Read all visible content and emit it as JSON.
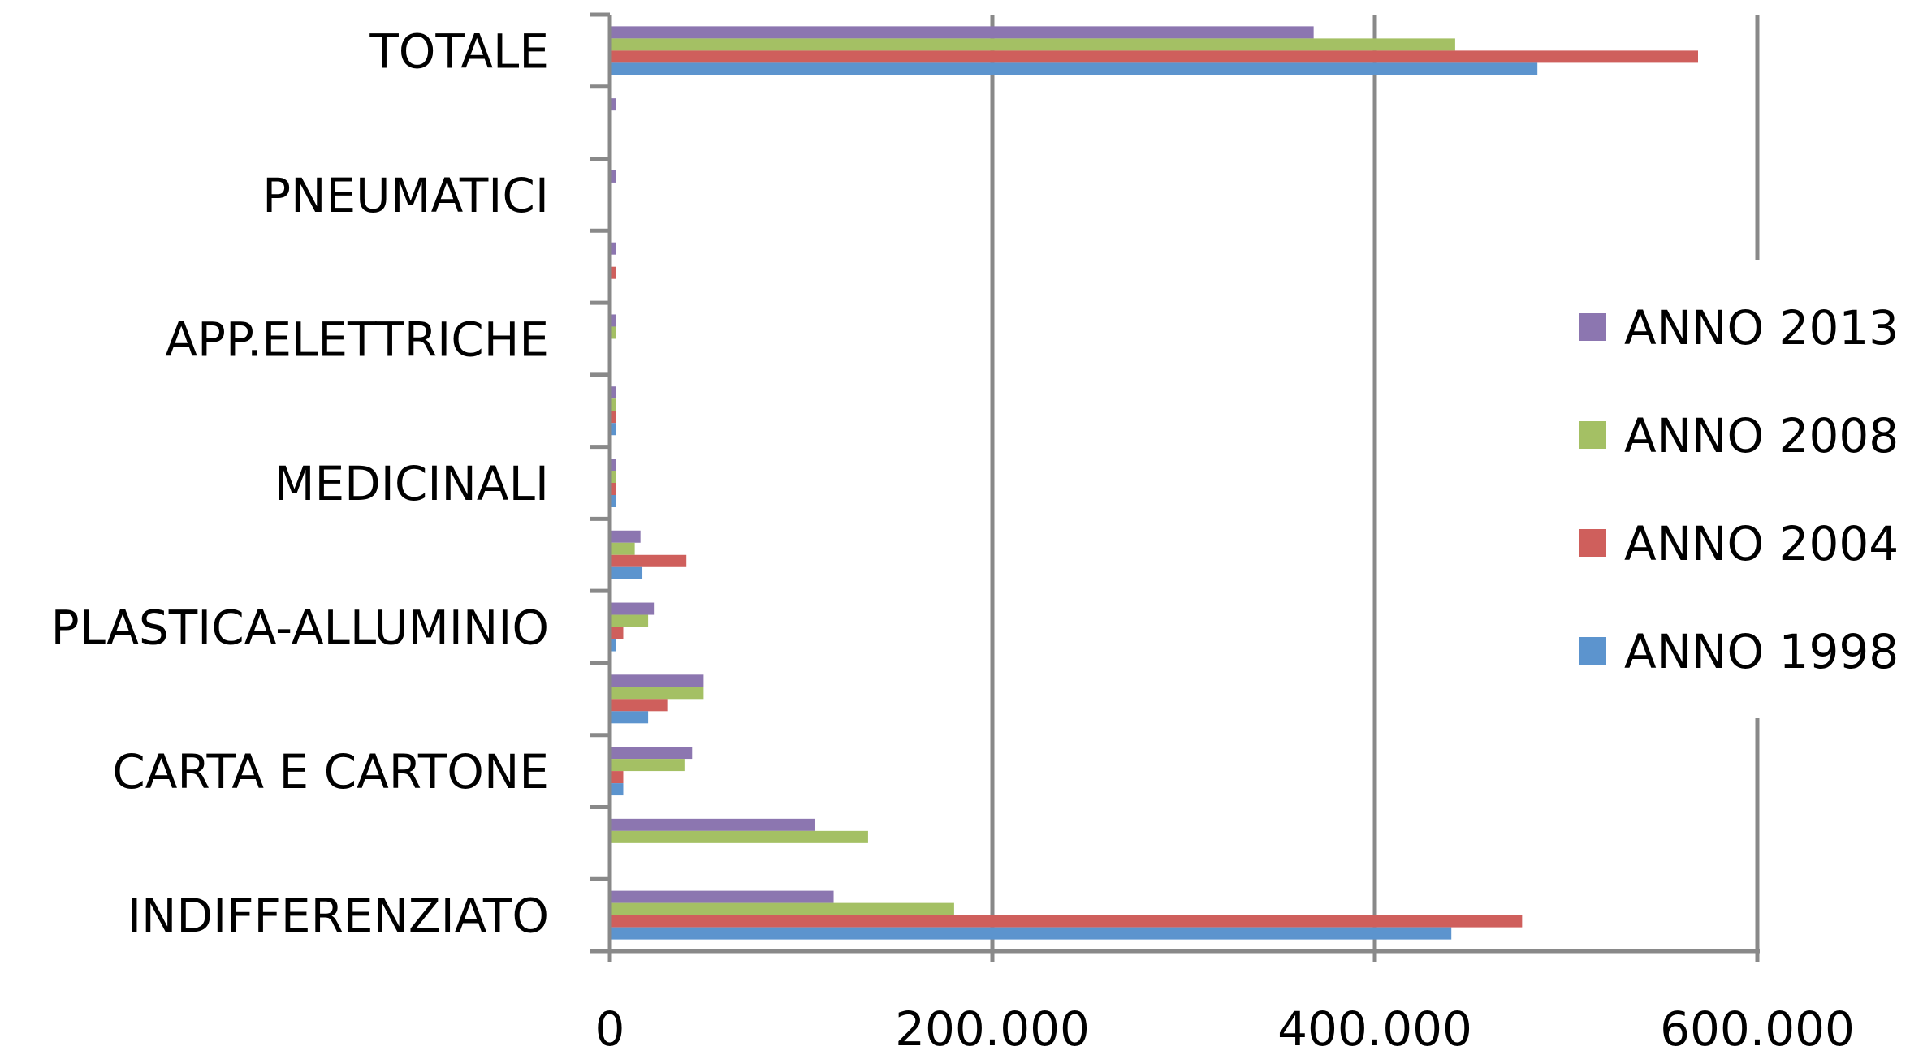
{
  "chart_data": {
    "type": "bar",
    "orientation": "horizontal",
    "categories": [
      "INDIFFERENZIATO",
      "",
      "CARTA E CARTONE",
      "",
      "PLASTICA-ALLUMINIO",
      "",
      "MEDICINALI",
      "",
      "APP.ELETTRICHE",
      "",
      "PNEUMATICI",
      "",
      "TOTALE"
    ],
    "series": [
      {
        "name": "ANNO 2013",
        "color": "#8C76B0",
        "values": [
          117000,
          107000,
          43000,
          49000,
          23000,
          16000,
          3000,
          3000,
          3000,
          3000,
          3000,
          3000,
          368000
        ]
      },
      {
        "name": "ANNO 2008",
        "color": "#A4C064",
        "values": [
          180000,
          135000,
          39000,
          49000,
          20000,
          13000,
          3000,
          3000,
          3000,
          0,
          0,
          0,
          442000
        ]
      },
      {
        "name": "ANNO 2004",
        "color": "#CF5F5C",
        "values": [
          477000,
          0,
          7000,
          30000,
          7000,
          40000,
          3000,
          3000,
          0,
          3000,
          0,
          0,
          569000
        ]
      },
      {
        "name": "ANNO 1998",
        "color": "#5C94CE",
        "values": [
          440000,
          0,
          7000,
          20000,
          3000,
          17000,
          3000,
          3000,
          0,
          0,
          0,
          0,
          485000
        ]
      }
    ],
    "xlim": [
      0,
      600000
    ],
    "xticks": [
      0,
      200000,
      400000,
      600000
    ],
    "xtick_labels": [
      "0",
      "200.000",
      "400.000",
      "600.000"
    ],
    "title": "",
    "xlabel": "",
    "ylabel": "",
    "grid": "vertical",
    "legend_position": "right",
    "colors": {
      "axis": "#898989",
      "grid": "#898989"
    }
  }
}
